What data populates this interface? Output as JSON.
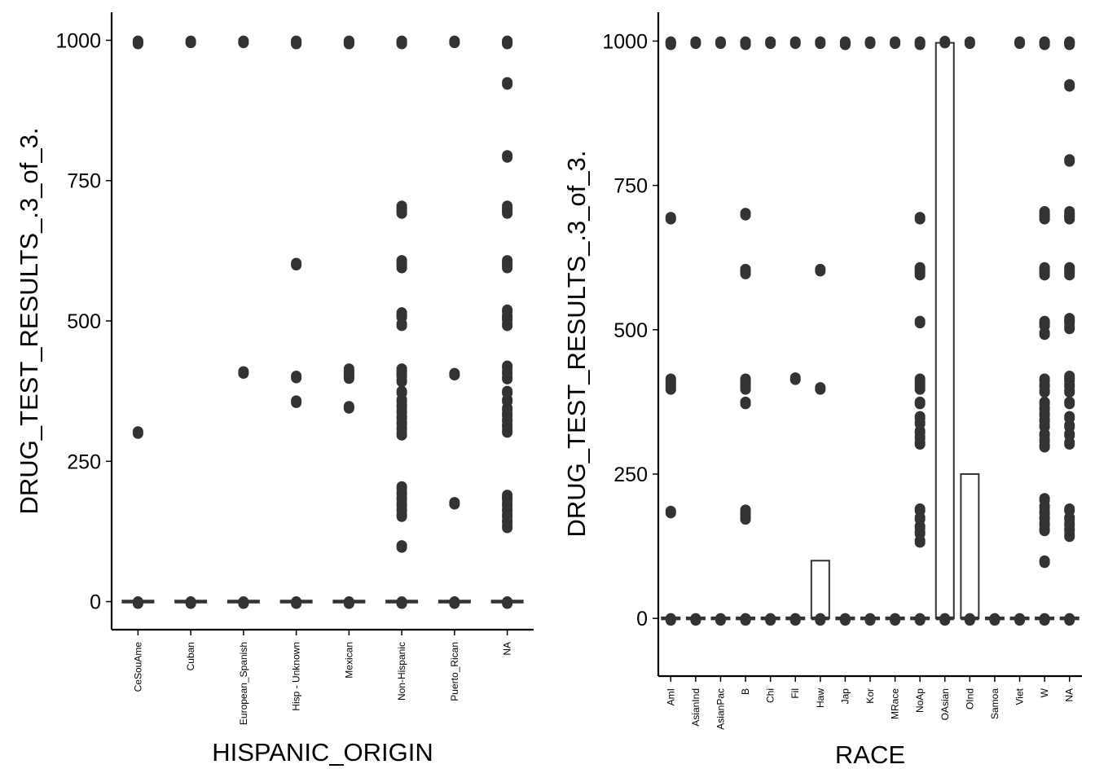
{
  "chart_data": [
    {
      "type": "boxplot",
      "xlabel": "HISPANIC_ORIGIN",
      "ylabel": "DRUG_TEST_RESULTS_.3_of_3.",
      "ylim": [
        -50,
        1050
      ],
      "yticks": [
        0,
        250,
        500,
        750,
        1000
      ],
      "categories": [
        "CeSouAme",
        "Cuban",
        "European_Spanish",
        "Hisp - Unknown",
        "Mexican",
        "Non-Hispanic",
        "Puerto_Rican",
        "NA"
      ],
      "boxes": [
        {
          "category": "CeSouAme",
          "min": 0,
          "q1": 0,
          "median": 0,
          "q3": 0,
          "max": 0
        },
        {
          "category": "Cuban",
          "min": 0,
          "q1": 0,
          "median": 0,
          "q3": 0,
          "max": 0
        },
        {
          "category": "European_Spanish",
          "min": 0,
          "q1": 0,
          "median": 0,
          "q3": 0,
          "max": 0
        },
        {
          "category": "Hisp - Unknown",
          "min": 0,
          "q1": 0,
          "median": 0,
          "q3": 0,
          "max": 0
        },
        {
          "category": "Mexican",
          "min": 0,
          "q1": 0,
          "median": 0,
          "q3": 0,
          "max": 0
        },
        {
          "category": "Non-Hispanic",
          "min": 0,
          "q1": 0,
          "median": 0,
          "q3": 0,
          "max": 0
        },
        {
          "category": "Puerto_Rican",
          "min": 0,
          "q1": 0,
          "median": 0,
          "q3": 0,
          "max": 0
        },
        {
          "category": "NA",
          "min": 0,
          "q1": 0,
          "median": 0,
          "q3": 0,
          "max": 0
        }
      ],
      "outliers": [
        {
          "category": "CeSouAme",
          "values": [
            0,
            303,
            997,
            999
          ]
        },
        {
          "category": "Cuban",
          "values": [
            0,
            999
          ]
        },
        {
          "category": "European_Spanish",
          "values": [
            0,
            410,
            999
          ]
        },
        {
          "category": "Hisp - Unknown",
          "values": [
            0,
            358,
            402,
            603,
            997,
            999
          ]
        },
        {
          "category": "Mexican",
          "values": [
            0,
            348,
            401,
            405,
            410,
            415,
            997,
            999
          ]
        },
        {
          "category": "Non-Hispanic",
          "values": [
            0,
            100,
            155,
            165,
            175,
            185,
            195,
            205,
            300,
            310,
            320,
            330,
            340,
            350,
            360,
            375,
            395,
            405,
            410,
            415,
            495,
            510,
            515,
            598,
            603,
            608,
            695,
            700,
            705,
            997,
            999
          ]
        },
        {
          "category": "Puerto_Rican",
          "values": [
            0,
            177,
            407,
            999
          ]
        },
        {
          "category": "NA",
          "values": [
            0,
            135,
            145,
            155,
            165,
            175,
            185,
            190,
            305,
            315,
            325,
            335,
            345,
            360,
            375,
            400,
            410,
            420,
            495,
            505,
            510,
            520,
            598,
            603,
            608,
            695,
            700,
            705,
            795,
            925,
            997,
            999
          ]
        }
      ],
      "outlier_color": "#333333"
    },
    {
      "type": "boxplot",
      "xlabel": "RACE",
      "ylabel": "DRUG_TEST_RESULTS_.3_of_3.",
      "ylim": [
        -100,
        1050
      ],
      "yticks": [
        0,
        250,
        500,
        750,
        1000
      ],
      "categories": [
        "AmI",
        "AsianInd",
        "AsianPac",
        "B",
        "Chi",
        "Fil",
        "Haw",
        "Jap",
        "Kor",
        "MRace",
        "NoAp",
        "OAsian",
        "OInd",
        "Samoa",
        "Viet",
        "W",
        "NA"
      ],
      "boxes": [
        {
          "category": "AmI",
          "min": 0,
          "q1": 0,
          "median": 0,
          "q3": 0,
          "max": 0
        },
        {
          "category": "AsianInd",
          "min": 0,
          "q1": 0,
          "median": 0,
          "q3": 0,
          "max": 0
        },
        {
          "category": "AsianPac",
          "min": 0,
          "q1": 0,
          "median": 0,
          "q3": 0,
          "max": 0
        },
        {
          "category": "B",
          "min": 0,
          "q1": 0,
          "median": 0,
          "q3": 0,
          "max": 0
        },
        {
          "category": "Chi",
          "min": 0,
          "q1": 0,
          "median": 0,
          "q3": 0,
          "max": 0
        },
        {
          "category": "Fil",
          "min": 0,
          "q1": 0,
          "median": 0,
          "q3": 0,
          "max": 0
        },
        {
          "category": "Haw",
          "min": 0,
          "q1": 0,
          "median": 0,
          "q3": 100,
          "max": 100
        },
        {
          "category": "Jap",
          "min": 0,
          "q1": 0,
          "median": 0,
          "q3": 0,
          "max": 0
        },
        {
          "category": "Kor",
          "min": 0,
          "q1": 0,
          "median": 0,
          "q3": 0,
          "max": 0
        },
        {
          "category": "MRace",
          "min": 0,
          "q1": 0,
          "median": 0,
          "q3": 0,
          "max": 0
        },
        {
          "category": "NoAp",
          "min": 0,
          "q1": 0,
          "median": 0,
          "q3": 0,
          "max": 0
        },
        {
          "category": "OAsian",
          "min": 0,
          "q1": 0,
          "median": 0,
          "q3": 997,
          "max": 1000
        },
        {
          "category": "OInd",
          "min": 0,
          "q1": 0,
          "median": 0,
          "q3": 250,
          "max": 250
        },
        {
          "category": "Samoa",
          "min": 0,
          "q1": 0,
          "median": 0,
          "q3": 0,
          "max": 0
        },
        {
          "category": "Viet",
          "min": 0,
          "q1": 0,
          "median": 0,
          "q3": 0,
          "max": 0
        },
        {
          "category": "W",
          "min": 0,
          "q1": 0,
          "median": 0,
          "q3": 0,
          "max": 0
        },
        {
          "category": "NA",
          "min": 0,
          "q1": 0,
          "median": 0,
          "q3": 0,
          "max": 0
        }
      ],
      "outliers": [
        {
          "category": "AmI",
          "values": [
            0,
            186,
            400,
            408,
            415,
            695,
            997,
            999
          ]
        },
        {
          "category": "AsianInd",
          "values": [
            0,
            999
          ]
        },
        {
          "category": "AsianPac",
          "values": [
            0,
            999
          ]
        },
        {
          "category": "B",
          "values": [
            0,
            175,
            182,
            188,
            375,
            400,
            405,
            410,
            415,
            600,
            605,
            702,
            997,
            999
          ]
        },
        {
          "category": "Chi",
          "values": [
            0,
            999
          ]
        },
        {
          "category": "Fil",
          "values": [
            0,
            417,
            999
          ]
        },
        {
          "category": "Haw",
          "values": [
            0,
            400,
            605,
            999
          ]
        },
        {
          "category": "Jap",
          "values": [
            0,
            997,
            999
          ]
        },
        {
          "category": "Kor",
          "values": [
            0,
            999
          ]
        },
        {
          "category": "MRace",
          "values": [
            0,
            999
          ]
        },
        {
          "category": "NoAp",
          "values": [
            0,
            135,
            150,
            160,
            175,
            190,
            305,
            315,
            325,
            340,
            350,
            375,
            400,
            408,
            415,
            515,
            598,
            603,
            608,
            695,
            997,
            999
          ]
        },
        {
          "category": "OAsian",
          "values": [
            0,
            1000
          ]
        },
        {
          "category": "OInd",
          "values": [
            0,
            999
          ]
        },
        {
          "category": "Samoa",
          "values": [
            0
          ]
        },
        {
          "category": "Viet",
          "values": [
            0,
            999
          ]
        },
        {
          "category": "W",
          "values": [
            0,
            100,
            155,
            165,
            175,
            185,
            195,
            208,
            300,
            310,
            320,
            335,
            345,
            355,
            365,
            375,
            395,
            405,
            415,
            495,
            510,
            515,
            598,
            603,
            608,
            695,
            700,
            705,
            997,
            999
          ]
        },
        {
          "category": "NA",
          "values": [
            0,
            145,
            155,
            165,
            175,
            190,
            305,
            320,
            335,
            350,
            375,
            395,
            405,
            415,
            420,
            505,
            515,
            520,
            598,
            603,
            608,
            695,
            700,
            705,
            795,
            925,
            997,
            999
          ]
        }
      ],
      "outlier_color": "#333333"
    }
  ]
}
